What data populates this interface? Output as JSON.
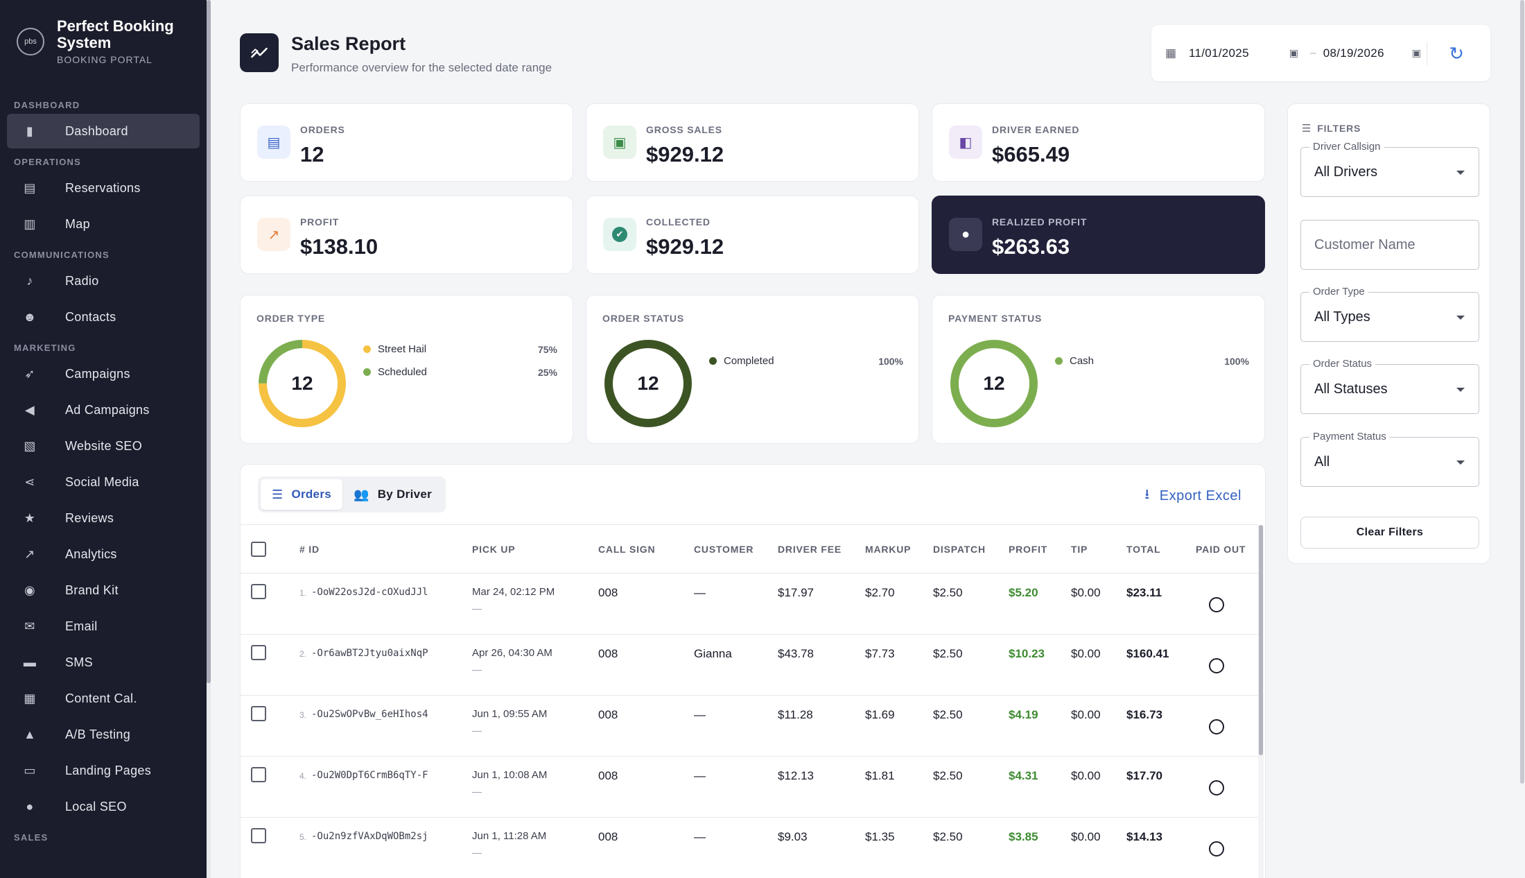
{
  "brand": {
    "name": "Perfect Booking System",
    "subtitle": "BOOKING PORTAL",
    "logo_text": "pbs"
  },
  "sidebar": {
    "sections": [
      {
        "label": "DASHBOARD",
        "items": [
          {
            "label": "Dashboard",
            "icon": "bar-chart-icon",
            "active": true
          }
        ]
      },
      {
        "label": "OPERATIONS",
        "items": [
          {
            "label": "Reservations",
            "icon": "clipboard-icon"
          },
          {
            "label": "Map",
            "icon": "map-icon"
          }
        ]
      },
      {
        "label": "COMMUNICATIONS",
        "items": [
          {
            "label": "Radio",
            "icon": "microphone-icon"
          },
          {
            "label": "Contacts",
            "icon": "people-icon"
          }
        ]
      },
      {
        "label": "MARKETING",
        "items": [
          {
            "label": "Campaigns",
            "icon": "rocket-icon"
          },
          {
            "label": "Ad Campaigns",
            "icon": "megaphone-icon"
          },
          {
            "label": "Website SEO",
            "icon": "chart-book-icon"
          },
          {
            "label": "Social Media",
            "icon": "share-icon"
          },
          {
            "label": "Reviews",
            "icon": "star-icon"
          },
          {
            "label": "Analytics",
            "icon": "trend-icon"
          },
          {
            "label": "Brand Kit",
            "icon": "palette-icon"
          },
          {
            "label": "Email",
            "icon": "mail-icon"
          },
          {
            "label": "SMS",
            "icon": "message-icon"
          },
          {
            "label": "Content Cal.",
            "icon": "calendar-icon"
          },
          {
            "label": "A/B Testing",
            "icon": "flask-icon"
          },
          {
            "label": "Landing Pages",
            "icon": "web-page-icon"
          },
          {
            "label": "Local SEO",
            "icon": "location-pin-icon"
          }
        ]
      },
      {
        "label": "SALES",
        "items": []
      }
    ]
  },
  "header": {
    "title": "Sales Report",
    "subtitle": "Performance overview for the selected date range"
  },
  "date_range": {
    "start": "11/01/2025",
    "separator": "–",
    "end": "08/19/2026"
  },
  "stats": [
    {
      "label": "ORDERS",
      "value": "12",
      "icon": "receipt-icon",
      "icon_bg": "#eaf0fd",
      "icon_color": "#3a63c9"
    },
    {
      "label": "GROSS SALES",
      "value": "$929.12",
      "icon": "cash-icon",
      "icon_bg": "#e8f4ea",
      "icon_color": "#3a8c47"
    },
    {
      "label": "DRIVER EARNED",
      "value": "$665.49",
      "icon": "wallet-icon",
      "icon_bg": "#f1ecf8",
      "icon_color": "#6b47a6"
    },
    {
      "label": "PROFIT",
      "value": "$138.10",
      "icon": "trend-up-icon",
      "icon_bg": "#fdf1e7",
      "icon_color": "#e27a35"
    },
    {
      "label": "COLLECTED",
      "value": "$929.12",
      "icon": "check-circle-icon",
      "icon_bg": "#e6f4f0",
      "icon_color": "#2e8a72"
    },
    {
      "label": "REALIZED PROFIT",
      "value": "$263.63",
      "icon": "piggy-bank-icon",
      "icon_bg": "#3b3a55",
      "icon_color": "#ffffff",
      "dark": true
    }
  ],
  "donuts": [
    {
      "title": "ORDER TYPE",
      "total": "12",
      "slices": [
        {
          "name": "Street Hail",
          "pct": "75%",
          "value": 75,
          "color": "#f5c242"
        },
        {
          "name": "Scheduled",
          "pct": "25%",
          "value": 25,
          "color": "#7cae4f"
        }
      ]
    },
    {
      "title": "ORDER STATUS",
      "total": "12",
      "slices": [
        {
          "name": "Completed",
          "pct": "100%",
          "value": 100,
          "color": "#3c5424"
        }
      ]
    },
    {
      "title": "PAYMENT STATUS",
      "total": "12",
      "slices": [
        {
          "name": "Cash",
          "pct": "100%",
          "value": 100,
          "color": "#7cae4f"
        }
      ]
    }
  ],
  "filters": {
    "title": "FILTERS",
    "driver": {
      "label": "Driver Callsign",
      "value": "All Drivers"
    },
    "customer": {
      "placeholder": "Customer Name"
    },
    "order_type": {
      "label": "Order Type",
      "value": "All Types"
    },
    "order_status": {
      "label": "Order Status",
      "value": "All Statuses"
    },
    "payment_status": {
      "label": "Payment Status",
      "value": "All"
    },
    "clear_label": "Clear Filters"
  },
  "table": {
    "tabs": [
      {
        "label": "Orders",
        "active": true
      },
      {
        "label": "By Driver",
        "active": false
      }
    ],
    "export_label": "Export Excel",
    "columns": [
      "# ID",
      "PICK UP",
      "CALL SIGN",
      "CUSTOMER",
      "DRIVER FEE",
      "MARKUP",
      "DISPATCH",
      "PROFIT",
      "TIP",
      "TOTAL",
      "PAID OUT"
    ],
    "rows": [
      {
        "num": "1.",
        "id": "-OoW22osJ2d-cOXudJJl",
        "pickup": "Mar 24, 02:12 PM",
        "pickup_sub": "—",
        "callsign": "008",
        "customer": "—",
        "driver_fee": "$17.97",
        "markup": "$2.70",
        "dispatch": "$2.50",
        "profit": "$5.20",
        "tip": "$0.00",
        "total": "$23.11"
      },
      {
        "num": "2.",
        "id": "-Or6awBT2Jtyu0aixNqP",
        "pickup": "Apr 26, 04:30 AM",
        "pickup_sub": "—",
        "callsign": "008",
        "customer": "Gianna",
        "driver_fee": "$43.78",
        "markup": "$7.73",
        "dispatch": "$2.50",
        "profit": "$10.23",
        "tip": "$0.00",
        "total": "$160.41"
      },
      {
        "num": "3.",
        "id": "-Ou2SwOPvBw_6eHIhos4",
        "pickup": "Jun 1, 09:55 AM",
        "pickup_sub": "—",
        "callsign": "008",
        "customer": "—",
        "driver_fee": "$11.28",
        "markup": "$1.69",
        "dispatch": "$2.50",
        "profit": "$4.19",
        "tip": "$0.00",
        "total": "$16.73"
      },
      {
        "num": "4.",
        "id": "-Ou2W0DpT6CrmB6qTY-F",
        "pickup": "Jun 1, 10:08 AM",
        "pickup_sub": "—",
        "callsign": "008",
        "customer": "—",
        "driver_fee": "$12.13",
        "markup": "$1.81",
        "dispatch": "$2.50",
        "profit": "$4.31",
        "tip": "$0.00",
        "total": "$17.70"
      },
      {
        "num": "5.",
        "id": "-Ou2n9zfVAxDqWOBm2sj",
        "pickup": "Jun 1, 11:28 AM",
        "pickup_sub": "—",
        "callsign": "008",
        "customer": "—",
        "driver_fee": "$9.03",
        "markup": "$1.35",
        "dispatch": "$2.50",
        "profit": "$3.85",
        "tip": "$0.00",
        "total": "$14.13"
      }
    ]
  }
}
